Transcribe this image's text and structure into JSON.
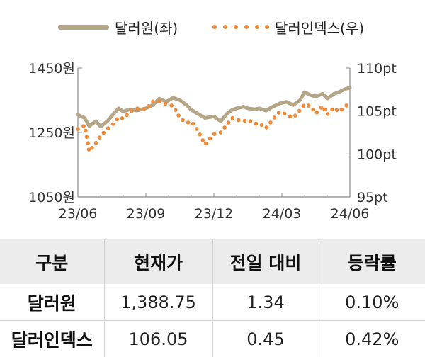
{
  "chart_data": {
    "type": "line",
    "x_range": [
      "2023-06",
      "2024-06"
    ],
    "x_ticks": [
      "23/06",
      "23/09",
      "23/12",
      "24/03",
      "24/06"
    ],
    "y_left": {
      "ticks": [
        "1450원",
        "1250원",
        "1050원"
      ],
      "range": [
        1050,
        1450
      ]
    },
    "y_right": {
      "ticks": [
        "110pt",
        "105pt",
        "100pt",
        "95pt"
      ],
      "range": [
        95,
        110
      ]
    },
    "legend_position": "top",
    "grid": false,
    "series": [
      {
        "name": "달러원(좌)",
        "axis": "left",
        "style": "solid",
        "color": "#b5a687",
        "x": [
          0,
          0.3,
          0.5,
          0.8,
          1,
          1.3,
          1.6,
          1.8,
          2,
          2.3,
          2.6,
          3,
          3.3,
          3.6,
          3.9,
          4.2,
          4.5,
          4.8,
          5,
          5.3,
          5.6,
          6,
          6.3,
          6.6,
          6.8,
          7,
          7.3,
          7.5,
          7.8,
          8,
          8.3,
          8.6,
          8.9,
          9.2,
          9.5,
          9.8,
          10,
          10.3,
          10.5,
          10.8,
          11,
          11.3,
          11.5,
          11.8,
          12
        ],
        "values": [
          1305,
          1295,
          1270,
          1285,
          1268,
          1285,
          1310,
          1325,
          1315,
          1322,
          1318,
          1325,
          1335,
          1355,
          1345,
          1358,
          1350,
          1335,
          1320,
          1308,
          1295,
          1300,
          1285,
          1310,
          1320,
          1325,
          1330,
          1325,
          1322,
          1325,
          1318,
          1330,
          1340,
          1345,
          1335,
          1350,
          1375,
          1365,
          1362,
          1370,
          1355,
          1370,
          1375,
          1385,
          1388.75
        ]
      },
      {
        "name": "달러인덱스(우)",
        "axis": "right",
        "style": "dotted",
        "color": "#ed8b3a",
        "x": [
          0,
          0.3,
          0.5,
          0.8,
          1,
          1.3,
          1.6,
          1.8,
          2,
          2.3,
          2.6,
          3,
          3.3,
          3.6,
          3.9,
          4.2,
          4.5,
          4.8,
          5,
          5.3,
          5.6,
          6,
          6.3,
          6.6,
          6.8,
          7,
          7.3,
          7.5,
          7.8,
          8,
          8.3,
          8.6,
          8.9,
          9.2,
          9.5,
          9.8,
          10,
          10.3,
          10.5,
          10.8,
          11,
          11.3,
          11.5,
          11.8,
          12
        ],
        "values": [
          102.9,
          103.3,
          100.3,
          101.3,
          102.1,
          102.9,
          103.6,
          104.3,
          104.1,
          104.9,
          105.3,
          105.2,
          106.1,
          106.1,
          105.8,
          105.6,
          104.2,
          103.6,
          103.8,
          102.7,
          101.1,
          102.3,
          102.5,
          103.5,
          104.2,
          104.0,
          103.8,
          104.0,
          103.5,
          103.6,
          103.0,
          104.0,
          104.9,
          104.6,
          104.2,
          105.1,
          105.8,
          105.5,
          104.7,
          105.6,
          104.6,
          105.4,
          104.9,
          105.5,
          106.05
        ]
      }
    ]
  },
  "table": {
    "headers": [
      "구분",
      "현재가",
      "전일 대비",
      "등락률"
    ],
    "rows": [
      [
        "달러원",
        "1,388.75",
        "1.34",
        "0.10%"
      ],
      [
        "달러인덱스",
        "106.05",
        "0.45",
        "0.42%"
      ]
    ]
  }
}
